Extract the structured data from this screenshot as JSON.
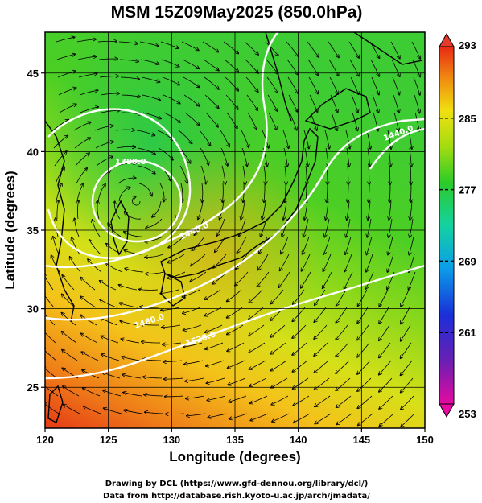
{
  "figure": {
    "title": "MSM 15Z09May2025 (850.0hPa)",
    "xlabel": "Longitude (degrees)",
    "ylabel": "Latitude  (degrees)",
    "credit_line1": "Drawing by DCL (https://www.gfd-dennou.org/library/dcl/)",
    "credit_line2": "Data from http://database.rish.kyoto-u.ac.jp/arch/jmadata/"
  },
  "map": {
    "type": "temperature-shading-with-streamlines-and-height-contours",
    "lon_range": [
      120,
      150
    ],
    "lat_range": [
      22.4,
      47.6
    ],
    "lon_ticks": [
      "120",
      "125",
      "130",
      "135",
      "140",
      "145",
      "150"
    ],
    "lat_ticks": [
      "25",
      "30",
      "35",
      "40",
      "45"
    ],
    "contour_labels": [
      "1380.0",
      "1440.0",
      "1480.0",
      "1520.0",
      "1440.0"
    ],
    "grid": true
  },
  "colorbar": {
    "range": [
      253,
      293
    ],
    "tick_labels": [
      "293",
      "285",
      "277",
      "269",
      "261",
      "253"
    ],
    "colors": [
      "#e60aa0",
      "#6a1fb3",
      "#1a2fd9",
      "#0a9ee8",
      "#14d2a0",
      "#2ccb28",
      "#a4dc10",
      "#f0e010",
      "#f08c10",
      "#e82a14"
    ]
  }
}
